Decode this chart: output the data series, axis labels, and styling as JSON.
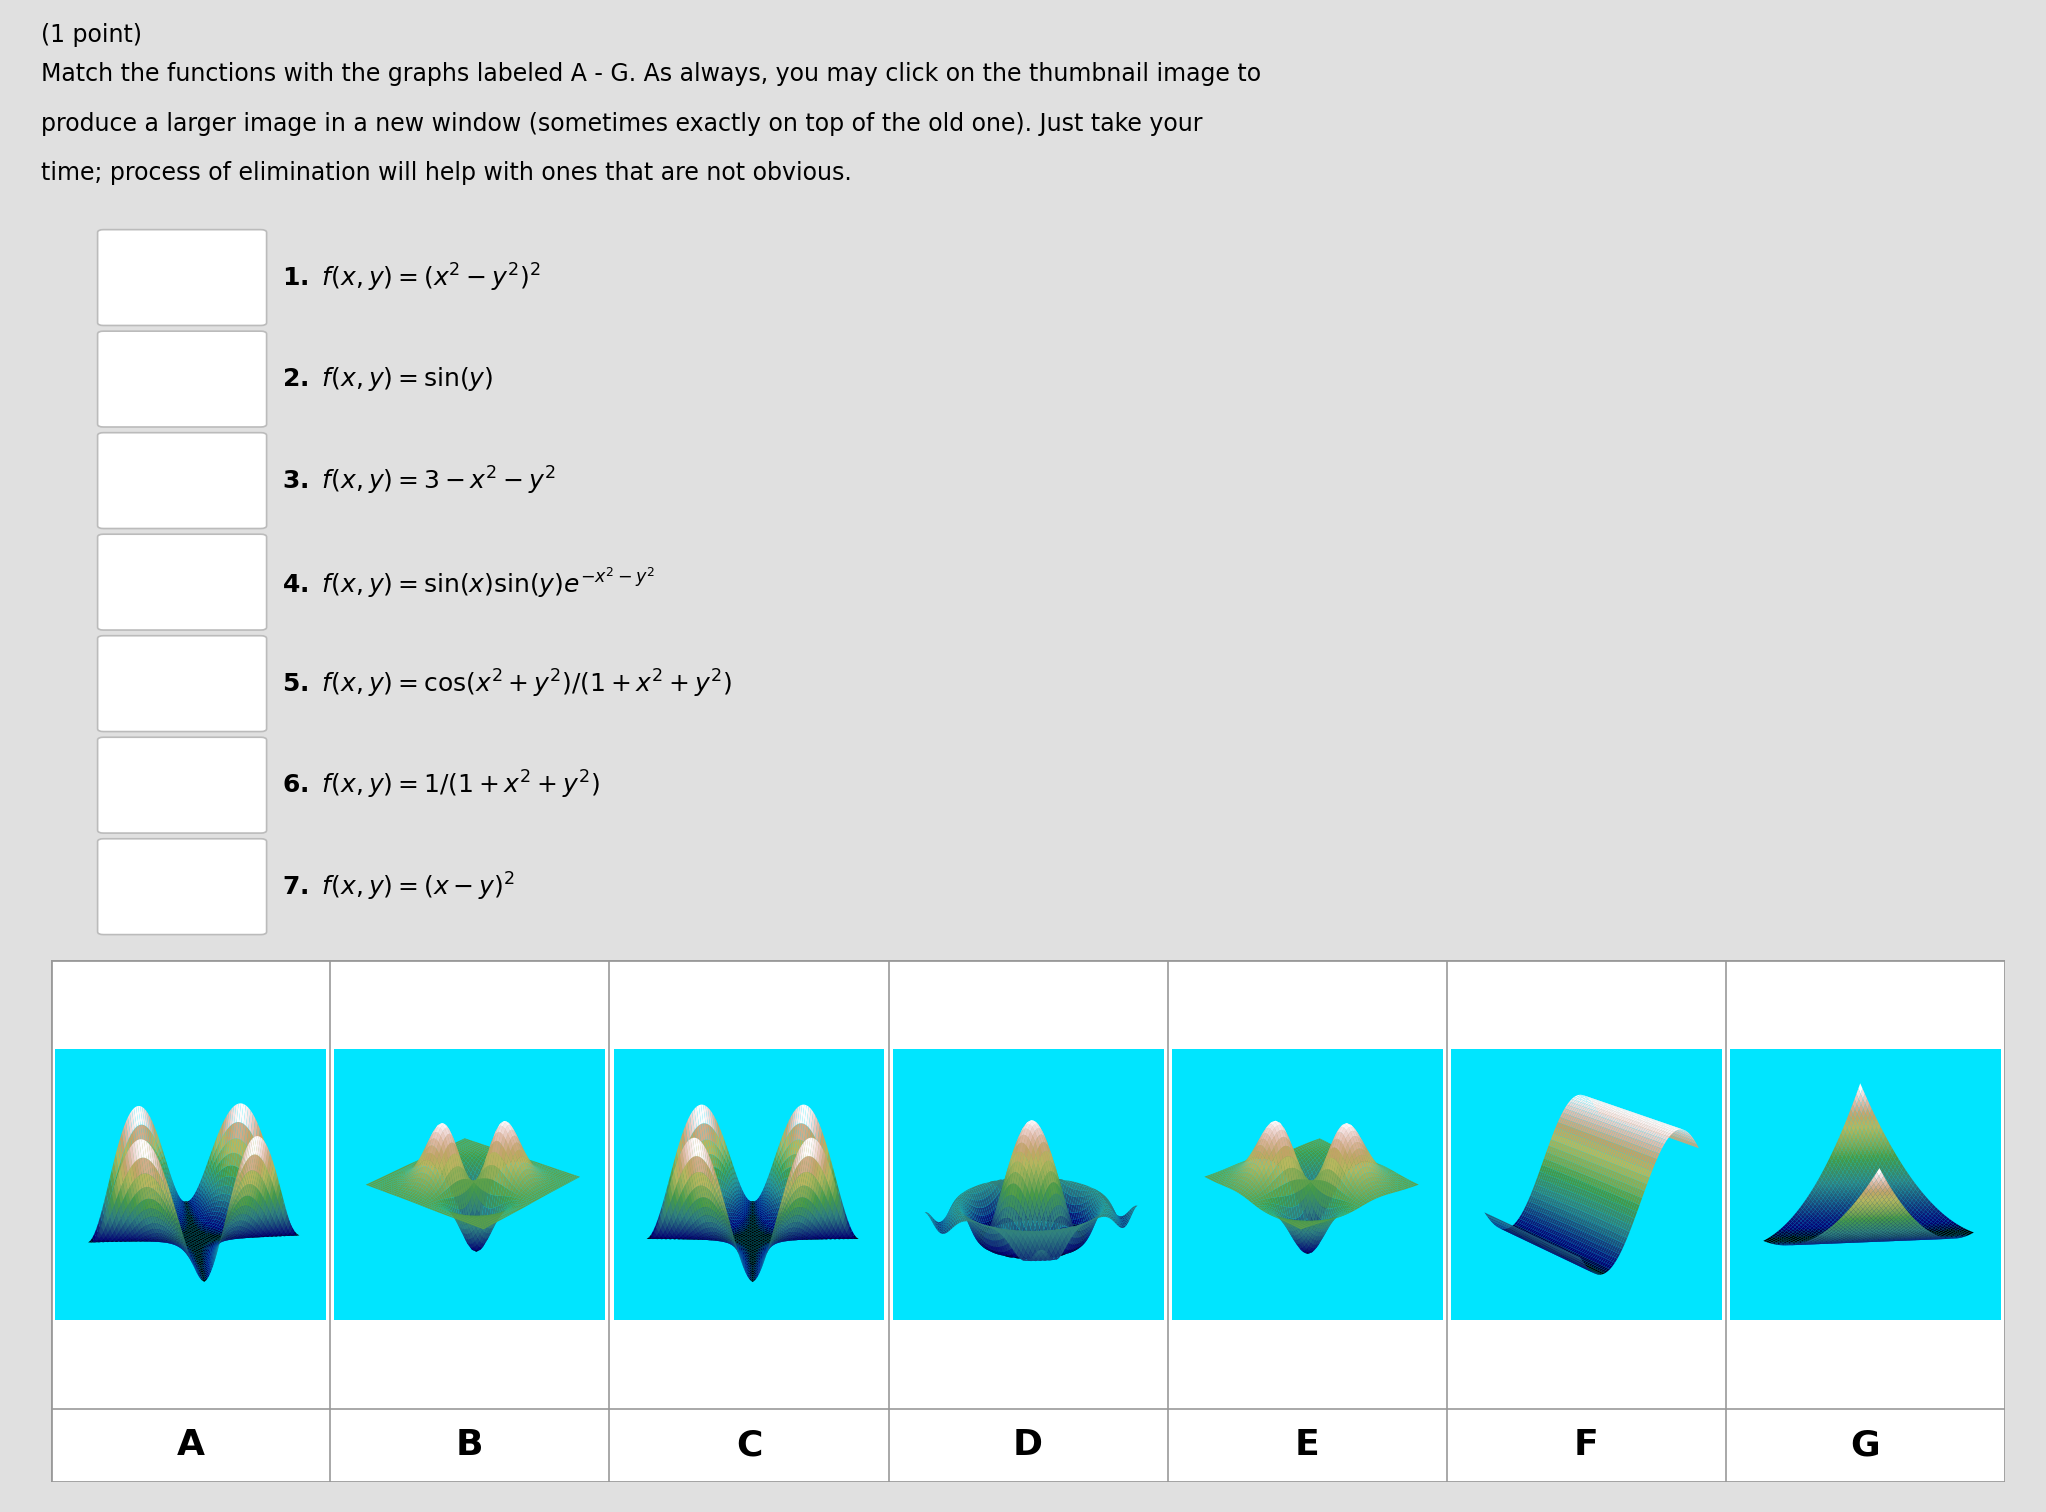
{
  "background_color": "#e0e0e0",
  "title_line": "(1 point)",
  "description_lines": [
    "Match the functions with the graphs labeled A - G. As always, you may click on the thumbnail image to",
    "produce a larger image in a new window (sometimes exactly on top of the old one). Just take your",
    "time; process of elimination will help with ones that are not obvious."
  ],
  "math_texts": [
    "1.\\u2002$f(x, y) = (x^2 - y^2)^2$",
    "2.\\u2002$f(x, y) = \\\\sin(y)$",
    "3.\\u2002$f(x, y) = 3 - x^2 - y^2$",
    "4.\\u2002$f(x, y) = \\\\sin(x)\\\\sin(y)e^{-x^2-y^2}$",
    "5.\\u2002$f(x, y) = \\\\cos(x^2 + y^2)/(1 + x^2 + y^2)$",
    "6.\\u2002$f(x, y) = 1/(1 + x^2 + y^2)$",
    "7.\\u2002$f(x, y) = (x - y)^2$"
  ],
  "graph_labels": [
    "A",
    "B",
    "C",
    "D",
    "E",
    "F",
    "G"
  ],
  "graph_bg_color": "#00e5ff",
  "table_border_color": "#999999",
  "cmap": "summer_r"
}
